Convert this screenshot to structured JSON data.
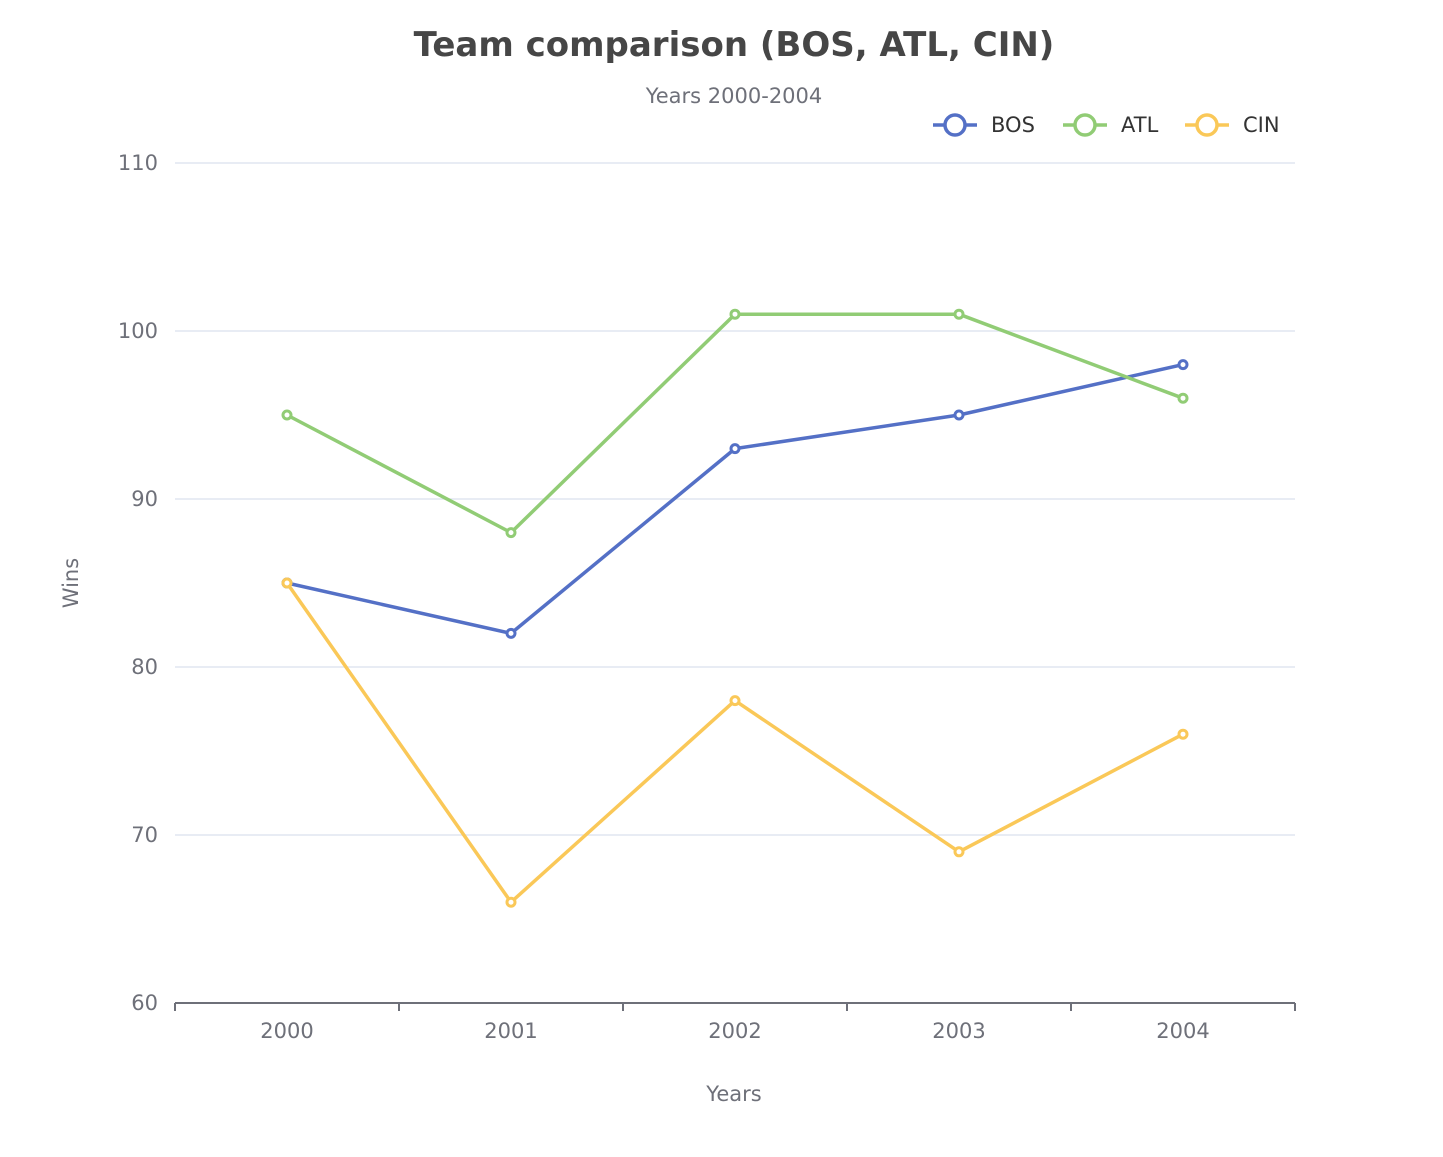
{
  "chart_data": {
    "type": "line",
    "title": "Team comparison (BOS, ATL, CIN)",
    "subtitle": "Years 2000-2004",
    "xlabel": "Years",
    "ylabel": "Wins",
    "categories": [
      "2000",
      "2001",
      "2002",
      "2003",
      "2004"
    ],
    "ylim": [
      60,
      110
    ],
    "yticks": [
      60,
      70,
      80,
      90,
      100,
      110
    ],
    "grid": true,
    "legend_position": "top-right",
    "series": [
      {
        "name": "BOS",
        "color": "#5470c6",
        "values": [
          85,
          82,
          93,
          95,
          98
        ]
      },
      {
        "name": "ATL",
        "color": "#91cc75",
        "values": [
          95,
          88,
          101,
          101,
          96
        ]
      },
      {
        "name": "CIN",
        "color": "#fac858",
        "values": [
          85,
          66,
          78,
          69,
          76
        ]
      }
    ]
  }
}
